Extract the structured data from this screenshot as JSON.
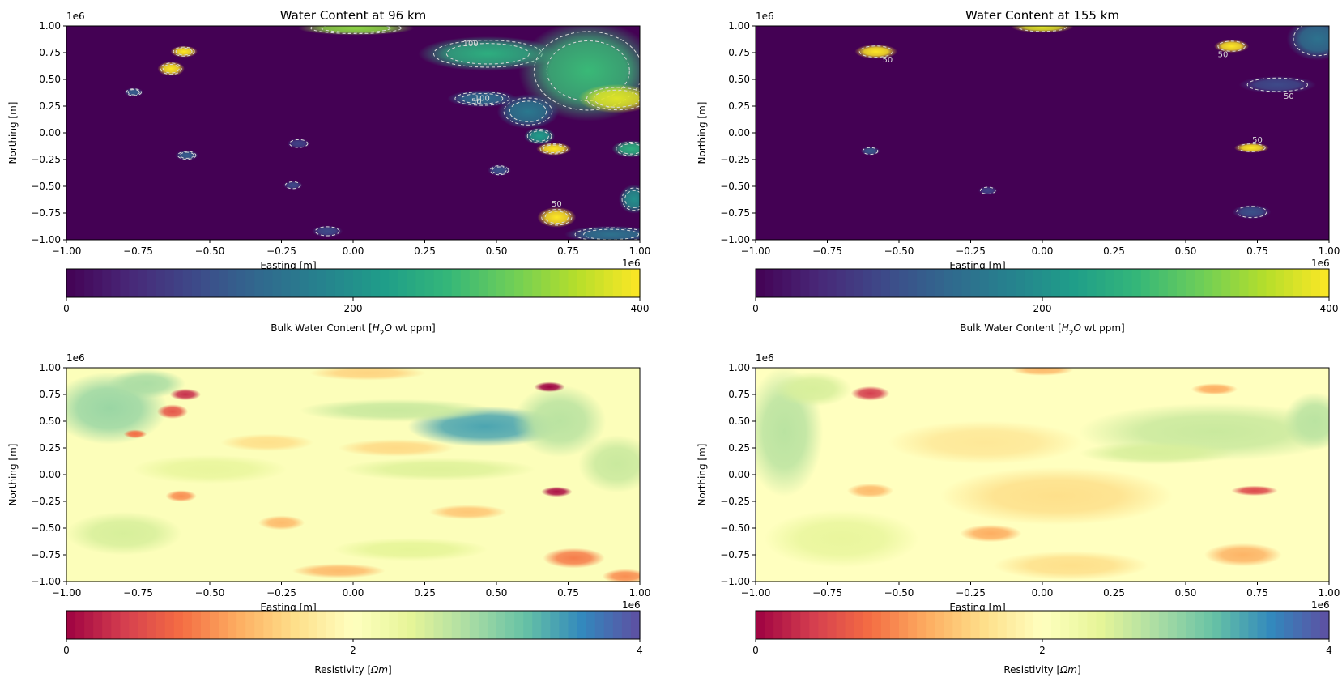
{
  "colors": {
    "viridis": [
      "#440154",
      "#482878",
      "#3e4989",
      "#31688e",
      "#26828e",
      "#1f9e89",
      "#35b779",
      "#6ece58",
      "#b5de2b",
      "#fde725"
    ],
    "spectral": [
      "#9e0142",
      "#d53e4f",
      "#f46d43",
      "#fdae61",
      "#fee08b",
      "#ffffbf",
      "#e6f598",
      "#abdda4",
      "#66c2a5",
      "#3288bd",
      "#5e4fa2"
    ],
    "contour": "#d9d9d9",
    "axis": "#000000"
  },
  "chart_data": [
    {
      "type": "heatmap",
      "title": "Water Content at 96 km",
      "xlabel": "Easting [m]",
      "ylabel": "Northing [m]",
      "x_offset_label": "1e6",
      "y_offset_label": "1e6",
      "xlim": [
        -1.0,
        1.0
      ],
      "ylim": [
        -1.0,
        1.0
      ],
      "xticks": [
        "−1.00",
        "−0.75",
        "−0.50",
        "−0.25",
        "0.00",
        "0.25",
        "0.50",
        "0.75",
        "1.00"
      ],
      "yticks": [
        "1.00",
        "0.75",
        "0.50",
        "0.25",
        "0.00",
        "−0.25",
        "−0.50",
        "−0.75",
        "−1.00"
      ],
      "colormap": "viridis",
      "background_value": 0,
      "contour_levels": [
        50,
        100
      ],
      "contour_labels": [
        {
          "text": "100",
          "x": 0.41,
          "y": 0.81
        },
        {
          "text": "100",
          "x": 0.45,
          "y": 0.3
        },
        {
          "text": "50",
          "x": 0.43,
          "y": 0.27
        },
        {
          "text": "50",
          "x": 0.71,
          "y": -0.69
        }
      ],
      "anomalies": [
        {
          "x": -0.59,
          "y": 0.76,
          "rx": 0.035,
          "ry": 0.04,
          "value": 400
        },
        {
          "x": -0.635,
          "y": 0.6,
          "rx": 0.035,
          "ry": 0.05,
          "value": 400
        },
        {
          "x": -0.765,
          "y": 0.38,
          "rx": 0.025,
          "ry": 0.03,
          "value": 120
        },
        {
          "x": -0.58,
          "y": -0.21,
          "rx": 0.03,
          "ry": 0.035,
          "value": 120
        },
        {
          "x": -0.21,
          "y": -0.49,
          "rx": 0.025,
          "ry": 0.03,
          "value": 90
        },
        {
          "x": -0.09,
          "y": -0.92,
          "rx": 0.04,
          "ry": 0.04,
          "value": 90
        },
        {
          "x": -0.19,
          "y": -0.1,
          "rx": 0.03,
          "ry": 0.035,
          "value": 80
        },
        {
          "x": 0.01,
          "y": 0.98,
          "rx": 0.15,
          "ry": 0.05,
          "value": 330
        },
        {
          "x": 0.47,
          "y": 0.74,
          "rx": 0.18,
          "ry": 0.12,
          "value": 250
        },
        {
          "x": 0.82,
          "y": 0.58,
          "rx": 0.18,
          "ry": 0.35,
          "value": 270
        },
        {
          "x": 0.92,
          "y": 0.32,
          "rx": 0.1,
          "ry": 0.1,
          "value": 380
        },
        {
          "x": 0.61,
          "y": 0.2,
          "rx": 0.08,
          "ry": 0.12,
          "value": 160
        },
        {
          "x": 0.65,
          "y": -0.03,
          "rx": 0.04,
          "ry": 0.06,
          "value": 220
        },
        {
          "x": 0.7,
          "y": -0.15,
          "rx": 0.045,
          "ry": 0.045,
          "value": 400
        },
        {
          "x": 0.45,
          "y": 0.32,
          "rx": 0.09,
          "ry": 0.06,
          "value": 140
        },
        {
          "x": 0.97,
          "y": -0.15,
          "rx": 0.05,
          "ry": 0.06,
          "value": 250
        },
        {
          "x": 0.71,
          "y": -0.79,
          "rx": 0.05,
          "ry": 0.07,
          "value": 400
        },
        {
          "x": 0.98,
          "y": -0.62,
          "rx": 0.04,
          "ry": 0.1,
          "value": 200
        },
        {
          "x": 0.9,
          "y": -0.95,
          "rx": 0.12,
          "ry": 0.06,
          "value": 150
        },
        {
          "x": 0.51,
          "y": -0.35,
          "rx": 0.03,
          "ry": 0.04,
          "value": 100
        }
      ],
      "colorbar": {
        "label_prefix": "Bulk Water Content [",
        "label_math_base": "H",
        "label_math_sub": "2",
        "label_math_tail": "O",
        "label_suffix": " wt ppm]",
        "range": [
          0,
          400
        ],
        "ticks": [
          "0",
          "200",
          "400"
        ]
      }
    },
    {
      "type": "heatmap",
      "title": "Water Content at 155 km",
      "xlabel": "Easting [m]",
      "ylabel": "Northing [m]",
      "x_offset_label": "1e6",
      "y_offset_label": "1e6",
      "xlim": [
        -1.0,
        1.0
      ],
      "ylim": [
        -1.0,
        1.0
      ],
      "xticks": [
        "−1.00",
        "−0.75",
        "−0.50",
        "−0.25",
        "0.00",
        "0.25",
        "0.50",
        "0.75",
        "1.00"
      ],
      "yticks": [
        "1.00",
        "0.75",
        "0.50",
        "0.25",
        "0.00",
        "−0.25",
        "−0.50",
        "−0.75",
        "−1.00"
      ],
      "colormap": "viridis",
      "background_value": 0,
      "contour_levels": [
        50
      ],
      "contour_labels": [
        {
          "text": "50",
          "x": -0.54,
          "y": 0.66
        },
        {
          "text": "50",
          "x": 0.63,
          "y": 0.71
        },
        {
          "text": "50",
          "x": 0.86,
          "y": 0.32
        },
        {
          "text": "50",
          "x": 0.75,
          "y": -0.09
        }
      ],
      "anomalies": [
        {
          "x": -0.58,
          "y": 0.76,
          "rx": 0.055,
          "ry": 0.05,
          "value": 400
        },
        {
          "x": -0.6,
          "y": -0.17,
          "rx": 0.025,
          "ry": 0.03,
          "value": 110
        },
        {
          "x": -0.19,
          "y": -0.54,
          "rx": 0.025,
          "ry": 0.03,
          "value": 80
        },
        {
          "x": 0.0,
          "y": 0.99,
          "rx": 0.08,
          "ry": 0.04,
          "value": 380
        },
        {
          "x": 0.66,
          "y": 0.81,
          "rx": 0.045,
          "ry": 0.045,
          "value": 400
        },
        {
          "x": 0.96,
          "y": 0.88,
          "rx": 0.08,
          "ry": 0.15,
          "value": 150
        },
        {
          "x": 0.82,
          "y": 0.45,
          "rx": 0.1,
          "ry": 0.06,
          "value": 90
        },
        {
          "x": 0.73,
          "y": -0.14,
          "rx": 0.045,
          "ry": 0.035,
          "value": 400
        },
        {
          "x": 0.73,
          "y": -0.74,
          "rx": 0.05,
          "ry": 0.05,
          "value": 100
        }
      ],
      "colorbar": {
        "label_prefix": "Bulk Water Content [",
        "label_math_base": "H",
        "label_math_sub": "2",
        "label_math_tail": "O",
        "label_suffix": " wt ppm]",
        "range": [
          0,
          400
        ],
        "ticks": [
          "0",
          "200",
          "400"
        ]
      }
    },
    {
      "type": "heatmap",
      "title": "",
      "xlabel": "Easting [m]",
      "ylabel": "Northing [m]",
      "x_offset_label": "1e6",
      "y_offset_label": "1e6",
      "xlim": [
        -1.0,
        1.0
      ],
      "ylim": [
        -1.0,
        1.0
      ],
      "xticks": [
        "−1.00",
        "−0.75",
        "−0.50",
        "−0.25",
        "0.00",
        "0.25",
        "0.50",
        "0.75",
        "1.00"
      ],
      "yticks": [
        "1.00",
        "0.75",
        "0.50",
        "0.25",
        "0.00",
        "−0.25",
        "−0.50",
        "−0.75",
        "−1.00"
      ],
      "colormap": "spectral",
      "background_value": 2.05,
      "contour_levels": [],
      "contour_labels": [],
      "anomalies": [
        {
          "x": -0.85,
          "y": 0.62,
          "rx": 0.15,
          "ry": 0.25,
          "value": 2.9
        },
        {
          "x": -0.72,
          "y": 0.85,
          "rx": 0.1,
          "ry": 0.1,
          "value": 2.8
        },
        {
          "x": 0.46,
          "y": 0.45,
          "rx": 0.2,
          "ry": 0.14,
          "value": 3.4
        },
        {
          "x": 0.15,
          "y": 0.6,
          "rx": 0.25,
          "ry": 0.08,
          "value": 2.6
        },
        {
          "x": 0.72,
          "y": 0.5,
          "rx": 0.12,
          "ry": 0.25,
          "value": 2.7
        },
        {
          "x": 0.92,
          "y": 0.1,
          "rx": 0.1,
          "ry": 0.2,
          "value": 2.6
        },
        {
          "x": 0.3,
          "y": 0.05,
          "rx": 0.25,
          "ry": 0.08,
          "value": 2.45
        },
        {
          "x": -0.5,
          "y": 0.05,
          "rx": 0.2,
          "ry": 0.1,
          "value": 2.35
        },
        {
          "x": -0.8,
          "y": -0.55,
          "rx": 0.15,
          "ry": 0.15,
          "value": 2.5
        },
        {
          "x": 0.2,
          "y": -0.7,
          "rx": 0.2,
          "ry": 0.08,
          "value": 2.4
        },
        {
          "x": -0.585,
          "y": 0.75,
          "rx": 0.04,
          "ry": 0.04,
          "value": 0.3
        },
        {
          "x": -0.63,
          "y": 0.59,
          "rx": 0.04,
          "ry": 0.05,
          "value": 0.6
        },
        {
          "x": -0.76,
          "y": 0.38,
          "rx": 0.03,
          "ry": 0.03,
          "value": 0.8
        },
        {
          "x": 0.685,
          "y": 0.82,
          "rx": 0.04,
          "ry": 0.035,
          "value": 0.0
        },
        {
          "x": 0.71,
          "y": -0.16,
          "rx": 0.04,
          "ry": 0.035,
          "value": 0.1
        },
        {
          "x": -0.6,
          "y": -0.2,
          "rx": 0.04,
          "ry": 0.04,
          "value": 1.0
        },
        {
          "x": -0.25,
          "y": -0.45,
          "rx": 0.06,
          "ry": 0.05,
          "value": 1.3
        },
        {
          "x": 0.05,
          "y": 0.95,
          "rx": 0.15,
          "ry": 0.05,
          "value": 1.5
        },
        {
          "x": 0.77,
          "y": -0.78,
          "rx": 0.08,
          "ry": 0.07,
          "value": 0.9
        },
        {
          "x": 0.95,
          "y": -0.95,
          "rx": 0.06,
          "ry": 0.05,
          "value": 1.0
        },
        {
          "x": 0.4,
          "y": -0.35,
          "rx": 0.1,
          "ry": 0.05,
          "value": 1.4
        },
        {
          "x": 0.15,
          "y": 0.25,
          "rx": 0.15,
          "ry": 0.06,
          "value": 1.55
        },
        {
          "x": -0.3,
          "y": 0.3,
          "rx": 0.12,
          "ry": 0.06,
          "value": 1.6
        },
        {
          "x": -0.05,
          "y": -0.9,
          "rx": 0.12,
          "ry": 0.05,
          "value": 1.3
        }
      ],
      "colorbar": {
        "label_prefix": "Resistivity [",
        "label_math_base": "Ωm",
        "label_math_sub": "",
        "label_math_tail": "",
        "label_suffix": "]",
        "range": [
          0,
          4
        ],
        "ticks": [
          "0",
          "2",
          "4"
        ]
      }
    },
    {
      "type": "heatmap",
      "title": "",
      "xlabel": "Easting [m]",
      "ylabel": "Northing [m]",
      "x_offset_label": "1e6",
      "y_offset_label": "1e6",
      "xlim": [
        -1.0,
        1.0
      ],
      "ylim": [
        -1.0,
        1.0
      ],
      "xticks": [
        "−1.00",
        "−0.75",
        "−0.50",
        "−0.25",
        "0.00",
        "0.25",
        "0.50",
        "0.75",
        "1.00"
      ],
      "yticks": [
        "1.00",
        "0.75",
        "0.50",
        "0.25",
        "0.00",
        "−0.25",
        "−0.50",
        "−0.75",
        "−1.00"
      ],
      "colormap": "spectral",
      "background_value": 2.0,
      "contour_levels": [],
      "contour_labels": [],
      "anomalies": [
        {
          "x": -0.9,
          "y": 0.4,
          "rx": 0.1,
          "ry": 0.45,
          "value": 2.7
        },
        {
          "x": -0.8,
          "y": 0.8,
          "rx": 0.1,
          "ry": 0.12,
          "value": 2.5
        },
        {
          "x": 0.6,
          "y": 0.4,
          "rx": 0.35,
          "ry": 0.2,
          "value": 2.6
        },
        {
          "x": 0.4,
          "y": 0.2,
          "rx": 0.2,
          "ry": 0.08,
          "value": 2.5
        },
        {
          "x": 0.95,
          "y": 0.5,
          "rx": 0.08,
          "ry": 0.2,
          "value": 2.7
        },
        {
          "x": -0.7,
          "y": -0.6,
          "rx": 0.2,
          "ry": 0.2,
          "value": 2.35
        },
        {
          "x": -0.6,
          "y": 0.76,
          "rx": 0.05,
          "ry": 0.05,
          "value": 0.4
        },
        {
          "x": 0.74,
          "y": -0.15,
          "rx": 0.06,
          "ry": 0.035,
          "value": 0.5
        },
        {
          "x": 0.6,
          "y": 0.8,
          "rx": 0.06,
          "ry": 0.04,
          "value": 1.2
        },
        {
          "x": -0.18,
          "y": -0.55,
          "rx": 0.08,
          "ry": 0.06,
          "value": 1.2
        },
        {
          "x": -0.6,
          "y": -0.15,
          "rx": 0.06,
          "ry": 0.05,
          "value": 1.3
        },
        {
          "x": 0.0,
          "y": 0.98,
          "rx": 0.08,
          "ry": 0.04,
          "value": 1.3
        },
        {
          "x": 0.7,
          "y": -0.75,
          "rx": 0.1,
          "ry": 0.08,
          "value": 1.25
        },
        {
          "x": 0.05,
          "y": -0.2,
          "rx": 0.3,
          "ry": 0.2,
          "value": 1.6
        },
        {
          "x": -0.2,
          "y": 0.3,
          "rx": 0.25,
          "ry": 0.15,
          "value": 1.7
        },
        {
          "x": 0.1,
          "y": -0.85,
          "rx": 0.2,
          "ry": 0.1,
          "value": 1.6
        }
      ],
      "colorbar": {
        "label_prefix": "Resistivity [",
        "label_math_base": "Ωm",
        "label_math_sub": "",
        "label_math_tail": "",
        "label_suffix": "]",
        "range": [
          0,
          4
        ],
        "ticks": [
          "0",
          "2",
          "4"
        ]
      }
    }
  ]
}
